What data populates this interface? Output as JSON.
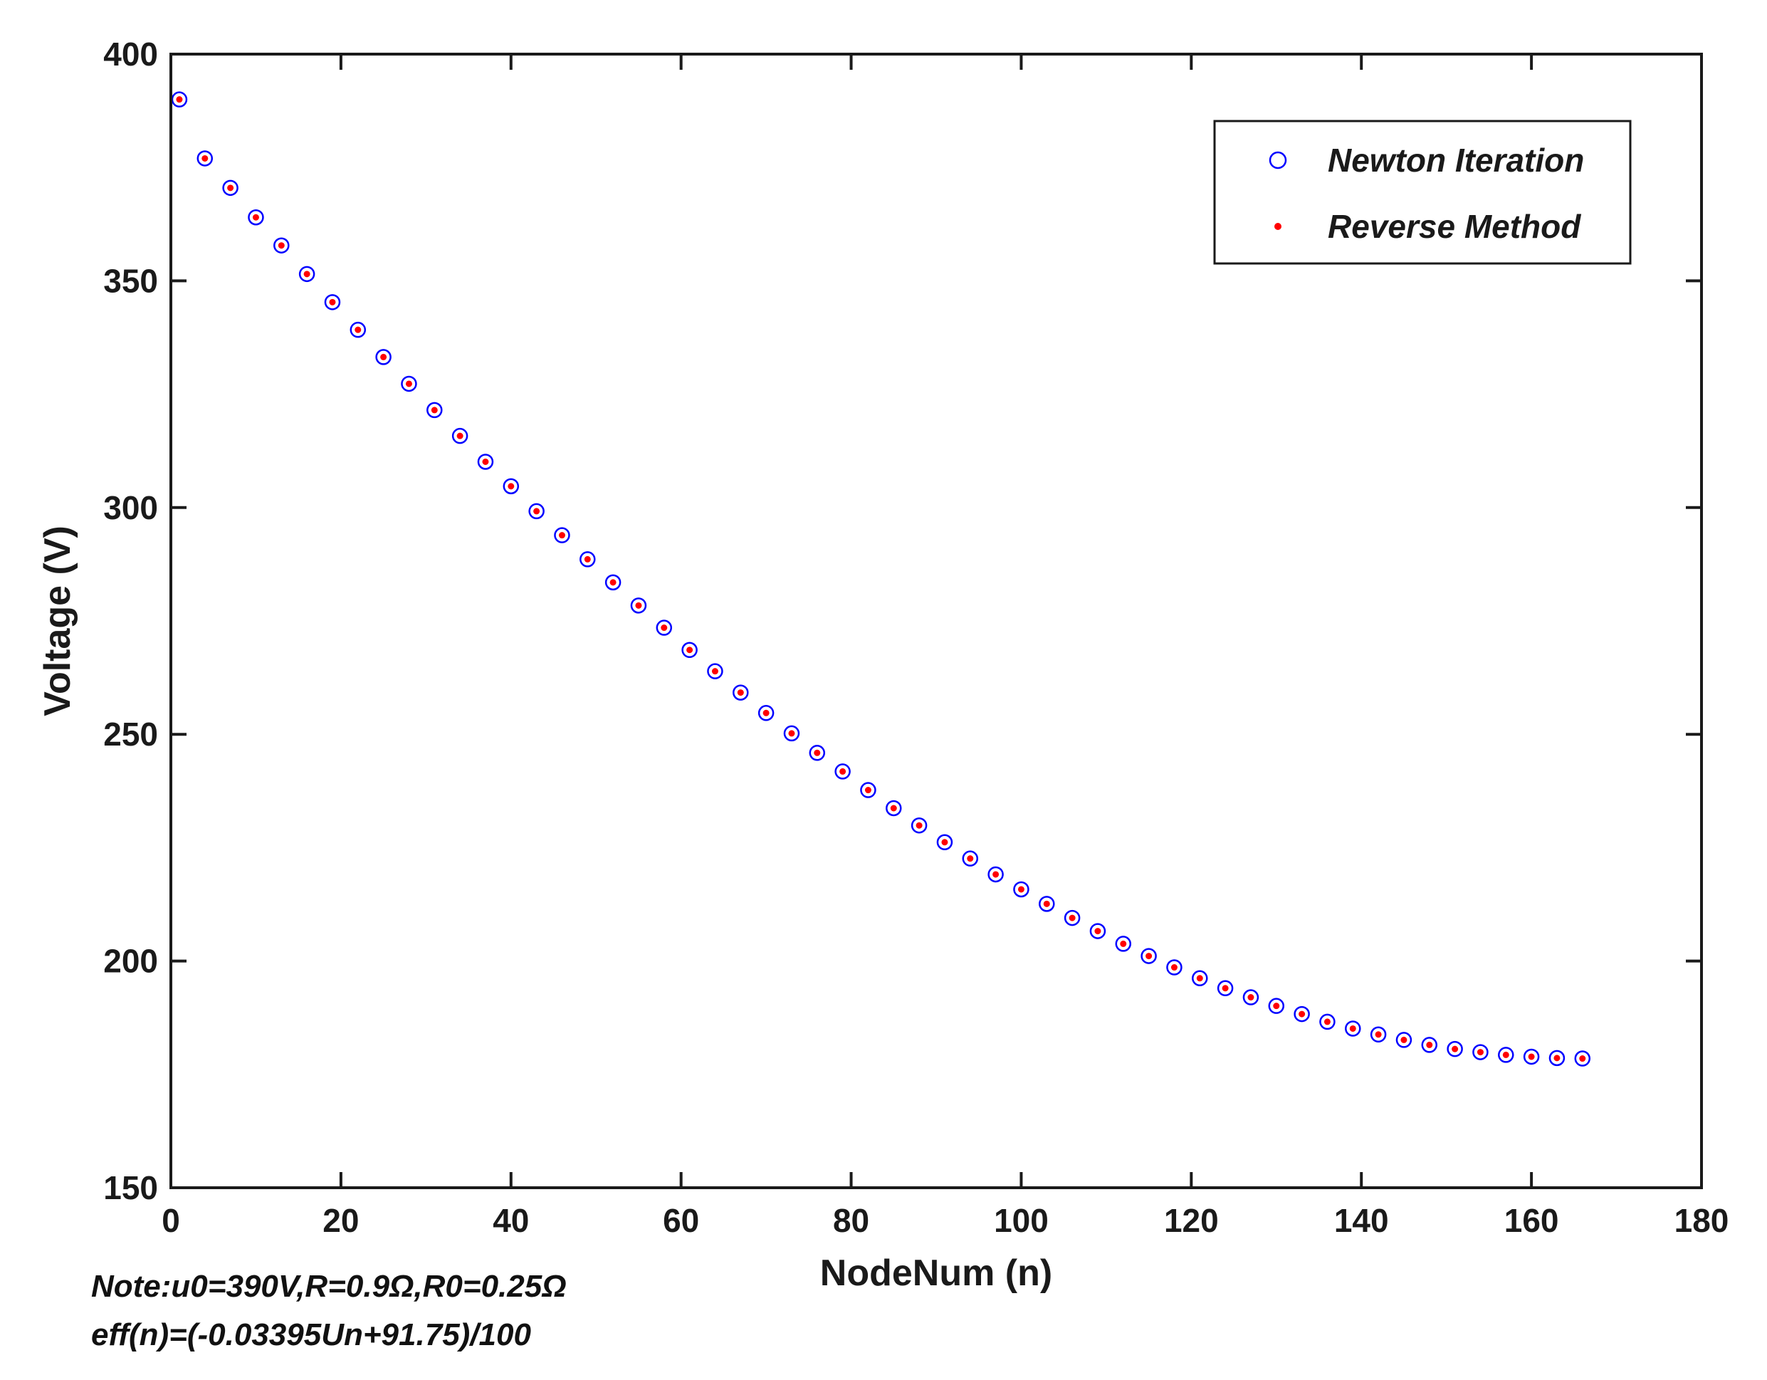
{
  "chart_data": {
    "type": "scatter",
    "xlabel": "NodeNum (n)",
    "ylabel": "Voltage (V)",
    "xlim": [
      0,
      180
    ],
    "ylim": [
      150,
      400
    ],
    "xticks": [
      0,
      20,
      40,
      60,
      80,
      100,
      120,
      140,
      160,
      180
    ],
    "yticks": [
      150,
      200,
      250,
      300,
      350,
      400
    ],
    "grid": false,
    "legend_position": "top-right",
    "x": [
      1,
      4,
      7,
      10,
      13,
      16,
      19,
      22,
      25,
      28,
      31,
      34,
      37,
      40,
      43,
      46,
      49,
      52,
      55,
      58,
      61,
      64,
      67,
      70,
      73,
      76,
      79,
      82,
      85,
      88,
      91,
      94,
      97,
      100,
      103,
      106,
      109,
      112,
      115,
      118,
      121,
      124,
      127,
      130,
      133,
      136,
      139,
      142,
      145,
      148,
      151,
      154,
      157,
      160,
      163,
      166
    ],
    "series": [
      {
        "name": "Newton Iteration",
        "marker": "open-circle",
        "color": "#0000ff",
        "values": [
          390.0,
          377.0,
          370.5,
          364.0,
          357.8,
          351.5,
          345.3,
          339.2,
          333.2,
          327.3,
          321.5,
          315.8,
          310.1,
          304.7,
          299.2,
          293.9,
          288.6,
          283.5,
          278.4,
          273.5,
          268.6,
          263.9,
          259.2,
          254.7,
          250.2,
          245.9,
          241.8,
          237.7,
          233.7,
          229.9,
          226.2,
          222.6,
          219.1,
          215.8,
          212.6,
          209.5,
          206.6,
          203.8,
          201.1,
          198.6,
          196.2,
          194.0,
          192.0,
          190.1,
          188.3,
          186.6,
          185.1,
          183.8,
          182.6,
          181.5,
          180.6,
          179.9,
          179.3,
          178.9,
          178.6,
          178.5
        ]
      },
      {
        "name": "Reverse Method",
        "marker": "dot",
        "color": "#ff0000",
        "values": [
          390.0,
          377.0,
          370.5,
          364.0,
          357.8,
          351.5,
          345.3,
          339.2,
          333.2,
          327.3,
          321.5,
          315.8,
          310.1,
          304.7,
          299.2,
          293.9,
          288.6,
          283.5,
          278.4,
          273.5,
          268.6,
          263.9,
          259.2,
          254.7,
          250.2,
          245.9,
          241.8,
          237.7,
          233.7,
          229.9,
          226.2,
          222.6,
          219.1,
          215.8,
          212.6,
          209.5,
          206.6,
          203.8,
          201.1,
          198.6,
          196.2,
          194.0,
          192.0,
          190.1,
          188.3,
          186.6,
          185.1,
          183.8,
          182.6,
          181.5,
          180.6,
          179.9,
          179.3,
          178.9,
          178.6,
          178.5
        ]
      }
    ]
  },
  "notes": {
    "line1": "Note:u0=390V,R=0.9Ω,R0=0.25Ω",
    "line2": "eff(n)=(-0.03395Un+91.75)/100"
  }
}
